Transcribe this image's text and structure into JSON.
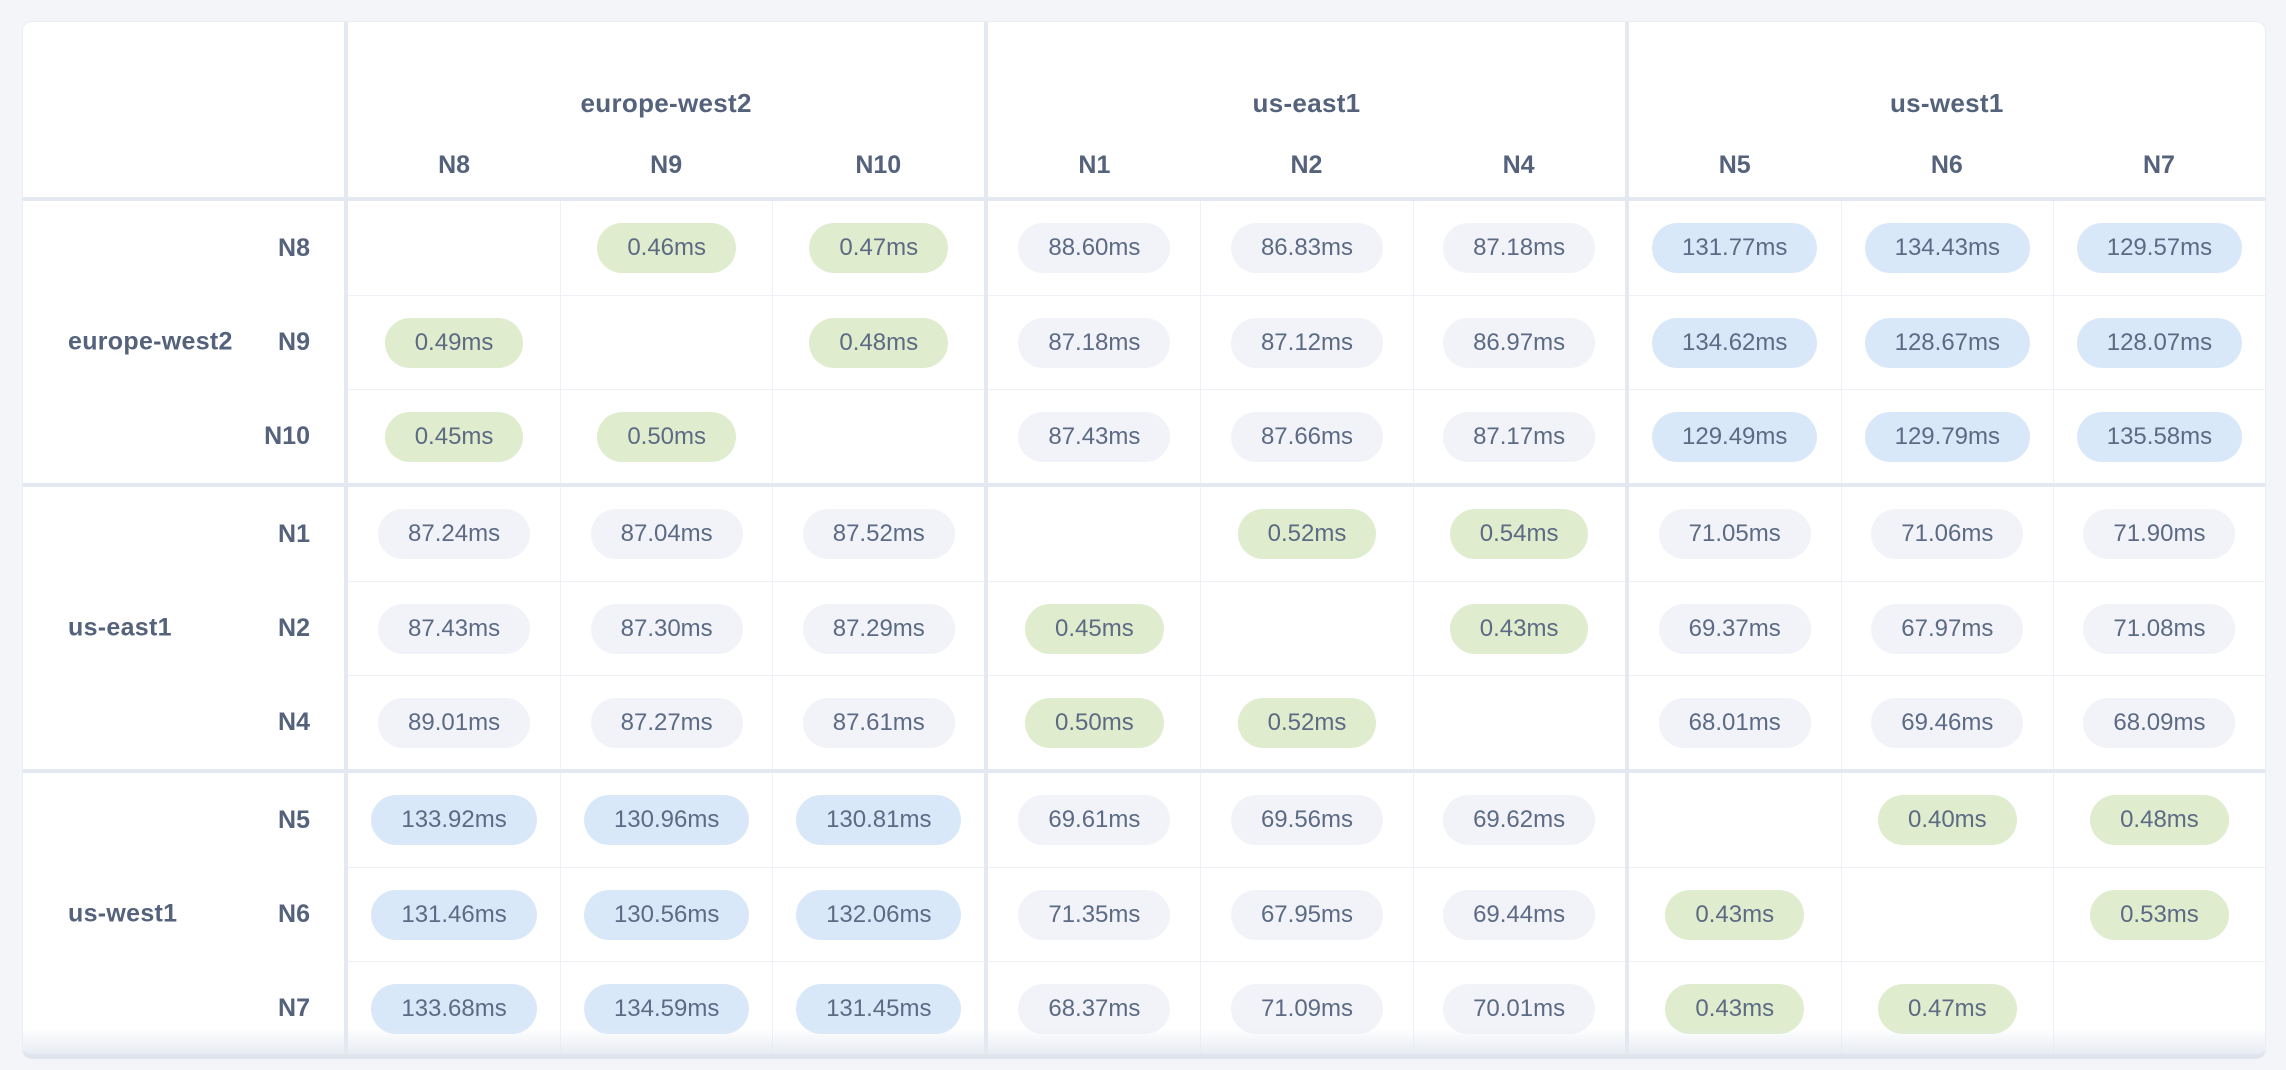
{
  "page": {
    "background": "#f3f5f9"
  },
  "table": {
    "corner_label": ""
  },
  "chart_data": {
    "type": "heatmap",
    "description": "Inter-node network latency matrix grouped by region",
    "unit_suffix": "ms",
    "regions": [
      {
        "region": "europe-west2",
        "nodes": [
          "N8",
          "N9",
          "N10"
        ]
      },
      {
        "region": "us-east1",
        "nodes": [
          "N1",
          "N2",
          "N4"
        ]
      },
      {
        "region": "us-west1",
        "nodes": [
          "N5",
          "N6",
          "N7"
        ]
      }
    ],
    "row_labels": [
      "N8",
      "N9",
      "N10",
      "N1",
      "N2",
      "N4",
      "N5",
      "N6",
      "N7"
    ],
    "col_labels": [
      "N8",
      "N9",
      "N10",
      "N1",
      "N2",
      "N4",
      "N5",
      "N6",
      "N7"
    ],
    "matrix": [
      [
        null,
        0.46,
        0.47,
        88.6,
        86.83,
        87.18,
        131.77,
        134.43,
        129.57
      ],
      [
        0.49,
        null,
        0.48,
        87.18,
        87.12,
        86.97,
        134.62,
        128.67,
        128.07
      ],
      [
        0.45,
        0.5,
        null,
        87.43,
        87.66,
        87.17,
        129.49,
        129.79,
        135.58
      ],
      [
        87.24,
        87.04,
        87.52,
        null,
        0.52,
        0.54,
        71.05,
        71.06,
        71.9
      ],
      [
        87.43,
        87.3,
        87.29,
        0.45,
        null,
        0.43,
        69.37,
        67.97,
        71.08
      ],
      [
        89.01,
        87.27,
        87.61,
        0.5,
        0.52,
        null,
        68.01,
        69.46,
        68.09
      ],
      [
        133.92,
        130.96,
        130.81,
        69.61,
        69.56,
        69.62,
        null,
        0.4,
        0.48
      ],
      [
        131.46,
        130.56,
        132.06,
        71.35,
        67.95,
        69.44,
        0.43,
        null,
        0.53
      ],
      [
        133.68,
        134.59,
        131.45,
        68.37,
        71.09,
        70.01,
        0.43,
        0.47,
        null
      ]
    ],
    "tier_thresholds_ms": {
      "low_max": 1,
      "mid_max": 100
    },
    "colors": {
      "low_latency_pill": "#dfecce",
      "mid_latency_pill": "#f1f3f8",
      "high_latency_pill": "#d9e8f9",
      "label_text": "#55627c",
      "value_text": "#5c6a84",
      "group_separator": "#e4e8f0",
      "inner_border": "#eef1f6",
      "table_background": "#ffffff",
      "page_background": "#f3f5f9"
    },
    "layout": {
      "grid": true,
      "row_group_size": 3,
      "col_group_size": 3
    }
  }
}
